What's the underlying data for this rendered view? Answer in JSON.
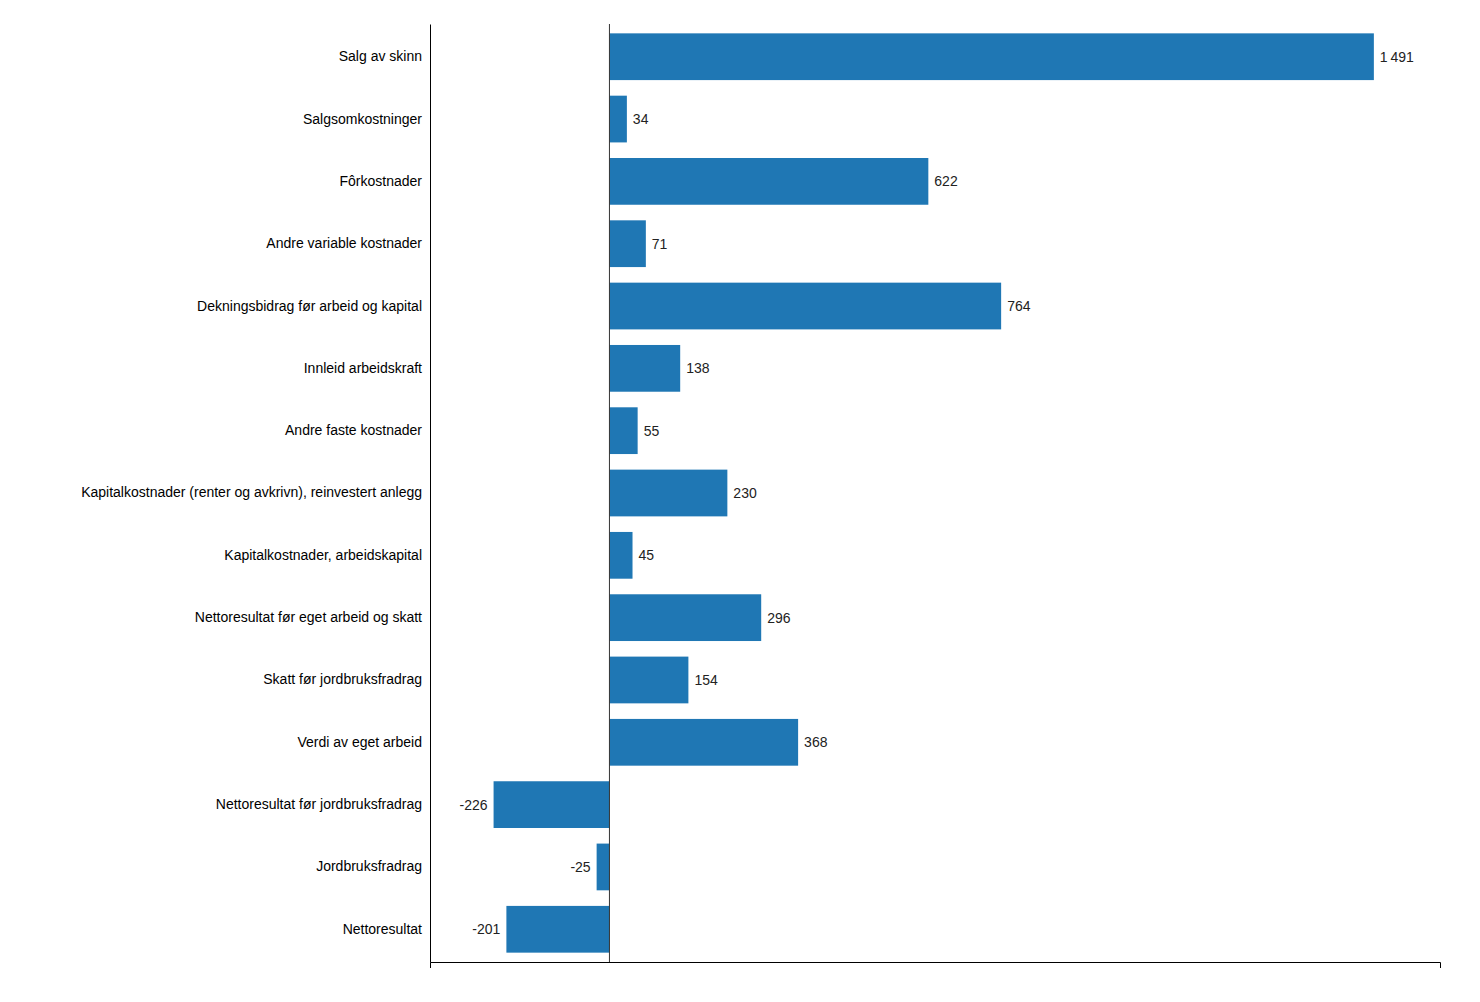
{
  "chart_data": {
    "type": "bar",
    "orientation": "horizontal",
    "categories": [
      "Salg av skinn",
      "Salgsomkostninger",
      "Fôrkostnader",
      "Andre variable kostnader",
      "Dekningsbidrag før arbeid og kapital",
      "Innleid arbeidskraft",
      "Andre faste kostnader",
      "Kapitalkostnader (renter og avkrivn), reinvestert anlegg",
      "Kapitalkostnader, arbeidskapital",
      "Nettoresultat før eget arbeid og skatt",
      "Skatt før jordbruksfradrag",
      "Verdi av eget arbeid",
      "Nettoresultat før jordbruksfradrag",
      "Jordbruksfradrag",
      "Nettoresultat"
    ],
    "values": [
      1491,
      34,
      622,
      71,
      764,
      138,
      55,
      230,
      45,
      296,
      154,
      368,
      -226,
      -25,
      -201
    ],
    "value_labels": [
      "1 491",
      "34",
      "622",
      "71",
      "764",
      "138",
      "55",
      "230",
      "45",
      "296",
      "154",
      "368",
      "-226",
      "-25",
      "-201"
    ],
    "data_labels": true,
    "xlim": [
      -350,
      1620
    ],
    "xticks": [],
    "tick_labels": "y",
    "grid": false
  }
}
